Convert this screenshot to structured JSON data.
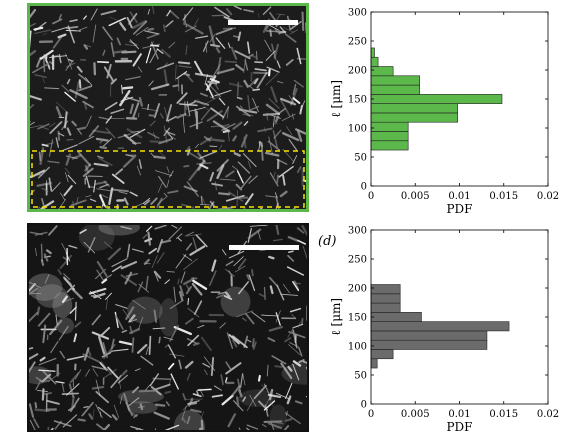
{
  "panel_label": "(d)",
  "chart_data": [
    {
      "type": "bar",
      "orientation": "horizontal",
      "title": "",
      "xlabel": "PDF",
      "ylabel": "ℓ [μm]",
      "xlim": [
        0,
        0.02
      ],
      "ylim": [
        0,
        300
      ],
      "xticks": [
        "0",
        "0.005",
        "0.01",
        "0.015",
        "0.02"
      ],
      "yticks": [
        "0",
        "50",
        "100",
        "150",
        "200",
        "250",
        "300"
      ],
      "color": "#5cb84a",
      "bin_width": 16,
      "bins": [
        {
          "y": 62,
          "value": 0.0042
        },
        {
          "y": 78,
          "value": 0.0042
        },
        {
          "y": 94,
          "value": 0.0042
        },
        {
          "y": 110,
          "value": 0.0098
        },
        {
          "y": 126,
          "value": 0.0098
        },
        {
          "y": 142,
          "value": 0.0148
        },
        {
          "y": 158,
          "value": 0.0055
        },
        {
          "y": 174,
          "value": 0.0055
        },
        {
          "y": 190,
          "value": 0.0025
        },
        {
          "y": 206,
          "value": 0.0008
        },
        {
          "y": 222,
          "value": 0.0004
        }
      ]
    },
    {
      "type": "bar",
      "orientation": "horizontal",
      "title": "",
      "xlabel": "PDF",
      "ylabel": "ℓ [μm]",
      "xlim": [
        0,
        0.02
      ],
      "ylim": [
        0,
        300
      ],
      "xticks": [
        "0",
        "0.005",
        "0.01",
        "0.015",
        "0.02"
      ],
      "yticks": [
        "0",
        "50",
        "100",
        "150",
        "200",
        "250",
        "300"
      ],
      "color": "#6b6b6b",
      "bin_width": 16,
      "bins": [
        {
          "y": 62,
          "value": 0.0007
        },
        {
          "y": 78,
          "value": 0.0025
        },
        {
          "y": 94,
          "value": 0.0131
        },
        {
          "y": 110,
          "value": 0.0131
        },
        {
          "y": 126,
          "value": 0.0156
        },
        {
          "y": 142,
          "value": 0.0057
        },
        {
          "y": 158,
          "value": 0.0033
        },
        {
          "y": 174,
          "value": 0.0033
        },
        {
          "y": 190,
          "value": 0.0033
        }
      ]
    }
  ]
}
